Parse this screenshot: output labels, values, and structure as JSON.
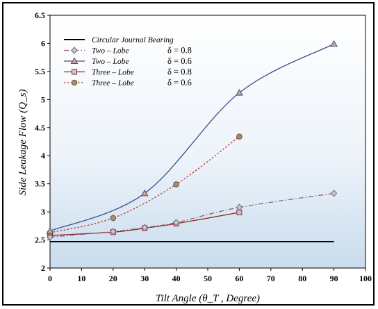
{
  "chart_data": {
    "type": "line",
    "xlabel": "Tilt   Angle   (θ_T , Degree)",
    "ylabel": "Side   Leakage   Flow   (Q_s)",
    "xlim": [
      0,
      100
    ],
    "ylim": [
      2,
      6.5
    ],
    "x_ticks": [
      "0",
      "10",
      "20",
      "30",
      "40",
      "50",
      "60",
      "70",
      "80",
      "90",
      "100"
    ],
    "y_ticks": [
      "2",
      "2.5",
      "3",
      "3.5",
      "4",
      "4.5",
      "5",
      "5.5",
      "6",
      "6.5"
    ],
    "grid": false,
    "legend_position": "top-left",
    "series": [
      {
        "name": "Circular  Journal  Bearing",
        "delta": "",
        "color": "#000000",
        "style": "solid",
        "marker": "none",
        "x": [
          0,
          90
        ],
        "y": [
          2.47,
          2.47
        ]
      },
      {
        "name": "Two – Lobe",
        "delta": "δ = 0.8",
        "color": "#8a5d7a",
        "style": "dashdot",
        "marker": "diamond",
        "x": [
          0,
          20,
          30,
          40,
          60,
          90
        ],
        "y": [
          2.55,
          2.65,
          2.72,
          2.81,
          3.08,
          3.33
        ]
      },
      {
        "name": "Two – Lobe",
        "delta": "δ = 0.6",
        "color": "#3f4f8c",
        "style": "solid",
        "marker": "triangle",
        "x": [
          0,
          30,
          60,
          90
        ],
        "y": [
          2.66,
          3.33,
          5.12,
          5.99
        ]
      },
      {
        "name": "Three – Lobe",
        "delta": "δ = 0.8",
        "color": "#8b2c2c",
        "style": "solid",
        "marker": "square",
        "x": [
          0,
          20,
          30,
          40,
          60
        ],
        "y": [
          2.58,
          2.64,
          2.71,
          2.79,
          2.99
        ]
      },
      {
        "name": "Three – Lobe",
        "delta": "δ = 0.6",
        "color": "#c03030",
        "style": "dotted",
        "marker": "circle",
        "x": [
          0,
          20,
          40,
          60
        ],
        "y": [
          2.63,
          2.89,
          3.49,
          4.34
        ]
      }
    ]
  }
}
